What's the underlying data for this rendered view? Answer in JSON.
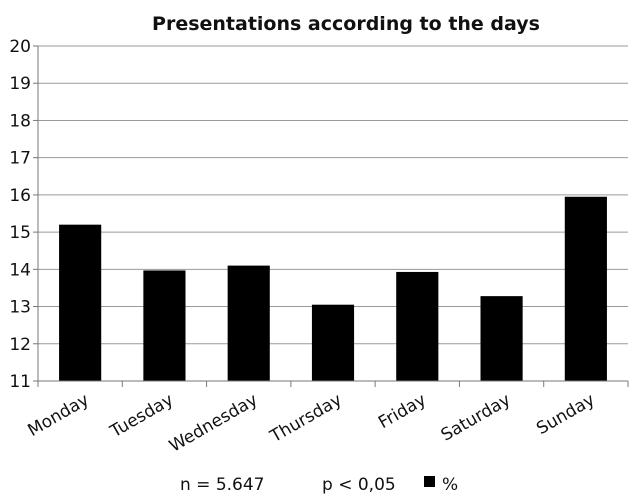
{
  "chart_data": {
    "type": "bar",
    "title": "Presentations according to the days",
    "xlabel": "",
    "ylabel": "",
    "categories": [
      "Monday",
      "Tuesday",
      "Wednesday",
      "Thursday",
      "Friday",
      "Saturday",
      "Sunday"
    ],
    "series": [
      {
        "name": "%",
        "values": [
          15.2,
          13.97,
          14.1,
          13.05,
          13.93,
          13.28,
          15.95
        ],
        "color": "#000000"
      }
    ],
    "ylim": [
      11,
      20
    ],
    "yticks": [
      11,
      12,
      13,
      14,
      15,
      16,
      17,
      18,
      19,
      20
    ],
    "grid": true,
    "legend": "bottom"
  },
  "notes": {
    "sample_size": "n = 5.647",
    "p_value": "p < 0,05"
  }
}
